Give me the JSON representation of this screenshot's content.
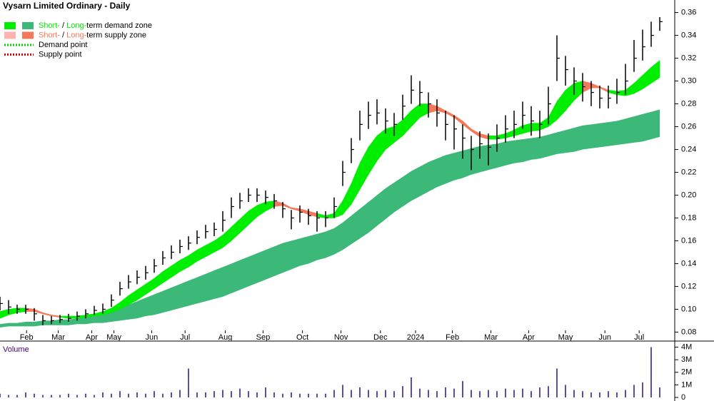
{
  "chart_data": {
    "type": "ohlc",
    "title": "Vysarn Limited Ordinary - Daily",
    "legend": [
      {
        "short": "Short-",
        "sep": " / ",
        "long": "Long-",
        "label": "term demand zone",
        "colors": [
          "#00ee00",
          "#3cb878"
        ]
      },
      {
        "short": "Short-",
        "sep": " / ",
        "long": "Long-",
        "label": "term supply zone",
        "colors": [
          "#ffb3ae",
          "#f4785a"
        ]
      },
      {
        "label": "Demand point",
        "color": "#00cc00"
      },
      {
        "label": "Supply point",
        "color": "#dd0000"
      }
    ],
    "x": [
      0,
      1,
      2,
      3,
      4,
      5,
      6,
      7,
      8,
      9,
      10,
      11,
      12,
      13,
      14,
      15,
      16,
      17,
      18,
      19,
      20,
      21,
      22,
      23,
      24,
      25,
      26,
      27,
      28,
      29,
      30,
      31,
      32,
      33,
      34,
      35,
      36,
      37,
      38,
      39,
      40,
      41,
      42,
      43,
      44,
      45,
      46,
      47,
      48,
      49,
      50,
      51,
      52,
      53,
      54,
      55,
      56,
      57,
      58,
      59,
      60,
      61,
      62,
      63,
      64,
      65,
      66,
      67,
      68,
      69,
      70,
      71,
      72,
      73,
      74,
      75,
      76,
      77
    ],
    "xlim": [
      0,
      78.75
    ],
    "xticks": [
      {
        "value": 3.1,
        "label": "Feb"
      },
      {
        "value": 6.8,
        "label": "Mar"
      },
      {
        "value": 10.7,
        "label": "Apr"
      },
      {
        "value": 13.3,
        "label": "May"
      },
      {
        "value": 17.7,
        "label": "Jun"
      },
      {
        "value": 21.6,
        "label": "Jul"
      },
      {
        "value": 26.3,
        "label": "Aug"
      },
      {
        "value": 30.7,
        "label": "Sep"
      },
      {
        "value": 35.3,
        "label": "Oct"
      },
      {
        "value": 39.8,
        "label": "Nov"
      },
      {
        "value": 44.4,
        "label": "Dec"
      },
      {
        "value": 48.5,
        "label": "2024"
      },
      {
        "value": 52.8,
        "label": "Feb"
      },
      {
        "value": 57.3,
        "label": "Mar"
      },
      {
        "value": 61.7,
        "label": "Apr"
      },
      {
        "value": 66,
        "label": "May"
      },
      {
        "value": 70.6,
        "label": "Jun"
      },
      {
        "value": 74.6,
        "label": "Jul"
      }
    ],
    "ylim": [
      0.074,
      0.371
    ],
    "yticks": [
      0.08,
      {
        "value": 0.1,
        "label": "0.10"
      },
      0.12,
      0.14,
      0.16,
      0.18,
      {
        "value": 0.2,
        "label": "0.20"
      },
      0.22,
      0.24,
      0.26,
      0.28,
      {
        "value": 0.3,
        "label": "0.30"
      },
      0.32,
      0.34,
      0.36
    ],
    "high": [
      0.111,
      0.108,
      0.104,
      0.104,
      0.101,
      0.095,
      0.094,
      0.095,
      0.096,
      0.098,
      0.1,
      0.103,
      0.105,
      0.113,
      0.124,
      0.13,
      0.134,
      0.138,
      0.144,
      0.151,
      0.156,
      0.161,
      0.164,
      0.169,
      0.174,
      0.176,
      0.186,
      0.198,
      0.202,
      0.206,
      0.206,
      0.204,
      0.201,
      0.194,
      0.187,
      0.191,
      0.188,
      0.186,
      0.186,
      0.198,
      0.23,
      0.25,
      0.274,
      0.282,
      0.284,
      0.276,
      0.272,
      0.288,
      0.305,
      0.3,
      0.29,
      0.284,
      0.274,
      0.27,
      0.262,
      0.252,
      0.256,
      0.254,
      0.262,
      0.27,
      0.274,
      0.282,
      0.278,
      0.274,
      0.295,
      0.34,
      0.322,
      0.312,
      0.307,
      0.3,
      0.296,
      0.296,
      0.302,
      0.315,
      0.336,
      0.345,
      0.352,
      0.356
    ],
    "low": [
      0.099,
      0.096,
      0.096,
      0.096,
      0.09,
      0.086,
      0.087,
      0.088,
      0.089,
      0.09,
      0.092,
      0.095,
      0.096,
      0.102,
      0.112,
      0.118,
      0.122,
      0.126,
      0.132,
      0.139,
      0.144,
      0.149,
      0.152,
      0.157,
      0.162,
      0.164,
      0.168,
      0.18,
      0.188,
      0.194,
      0.194,
      0.192,
      0.188,
      0.18,
      0.17,
      0.176,
      0.174,
      0.168,
      0.172,
      0.18,
      0.208,
      0.228,
      0.248,
      0.258,
      0.262,
      0.254,
      0.252,
      0.266,
      0.28,
      0.278,
      0.268,
      0.26,
      0.248,
      0.24,
      0.232,
      0.222,
      0.232,
      0.226,
      0.238,
      0.246,
      0.25,
      0.258,
      0.252,
      0.25,
      0.262,
      0.3,
      0.296,
      0.288,
      0.282,
      0.278,
      0.276,
      0.276,
      0.28,
      0.288,
      0.308,
      0.318,
      0.33,
      0.344
    ],
    "close": [
      0.105,
      0.102,
      0.1,
      0.1,
      0.096,
      0.09,
      0.09,
      0.091,
      0.092,
      0.094,
      0.096,
      0.099,
      0.1,
      0.108,
      0.118,
      0.124,
      0.128,
      0.132,
      0.138,
      0.145,
      0.15,
      0.155,
      0.158,
      0.163,
      0.168,
      0.17,
      0.178,
      0.19,
      0.195,
      0.2,
      0.2,
      0.198,
      0.195,
      0.188,
      0.18,
      0.185,
      0.182,
      0.18,
      0.18,
      0.19,
      0.22,
      0.24,
      0.262,
      0.27,
      0.272,
      0.265,
      0.262,
      0.278,
      0.292,
      0.29,
      0.28,
      0.272,
      0.262,
      0.258,
      0.25,
      0.24,
      0.245,
      0.242,
      0.25,
      0.258,
      0.262,
      0.27,
      0.265,
      0.262,
      0.28,
      0.32,
      0.31,
      0.3,
      0.295,
      0.29,
      0.285,
      0.285,
      0.29,
      0.3,
      0.32,
      0.33,
      0.34,
      0.352
    ],
    "short_zone": {
      "upper": [
        0.098,
        0.1,
        0.101,
        0.101,
        0.1,
        0.097,
        0.095,
        0.094,
        0.094,
        0.094,
        0.095,
        0.096,
        0.098,
        0.101,
        0.106,
        0.112,
        0.117,
        0.122,
        0.127,
        0.133,
        0.138,
        0.143,
        0.147,
        0.152,
        0.156,
        0.16,
        0.165,
        0.172,
        0.179,
        0.186,
        0.191,
        0.194,
        0.195,
        0.193,
        0.189,
        0.188,
        0.186,
        0.184,
        0.182,
        0.184,
        0.195,
        0.21,
        0.228,
        0.242,
        0.252,
        0.258,
        0.26,
        0.266,
        0.274,
        0.28,
        0.28,
        0.278,
        0.274,
        0.27,
        0.265,
        0.258,
        0.254,
        0.252,
        0.252,
        0.254,
        0.257,
        0.261,
        0.263,
        0.263,
        0.268,
        0.282,
        0.292,
        0.298,
        0.3,
        0.298,
        0.295,
        0.292,
        0.291,
        0.292,
        0.298,
        0.305,
        0.312,
        0.318
      ],
      "lower": [
        0.092,
        0.095,
        0.097,
        0.098,
        0.098,
        0.096,
        0.094,
        0.093,
        0.092,
        0.092,
        0.093,
        0.094,
        0.095,
        0.097,
        0.1,
        0.104,
        0.108,
        0.113,
        0.118,
        0.123,
        0.128,
        0.133,
        0.137,
        0.142,
        0.146,
        0.15,
        0.154,
        0.16,
        0.167,
        0.174,
        0.181,
        0.186,
        0.19,
        0.191,
        0.188,
        0.186,
        0.183,
        0.181,
        0.18,
        0.18,
        0.183,
        0.192,
        0.205,
        0.218,
        0.23,
        0.24,
        0.246,
        0.252,
        0.26,
        0.268,
        0.272,
        0.274,
        0.272,
        0.268,
        0.262,
        0.256,
        0.251,
        0.249,
        0.249,
        0.25,
        0.252,
        0.254,
        0.256,
        0.257,
        0.26,
        0.266,
        0.274,
        0.283,
        0.29,
        0.294,
        0.294,
        0.29,
        0.288,
        0.287,
        0.289,
        0.293,
        0.298,
        0.303
      ]
    },
    "long_zone": {
      "upper": [
        0.087,
        0.088,
        0.088,
        0.089,
        0.089,
        0.09,
        0.09,
        0.091,
        0.091,
        0.092,
        0.093,
        0.094,
        0.095,
        0.099,
        0.101,
        0.104,
        0.107,
        0.11,
        0.113,
        0.116,
        0.119,
        0.122,
        0.125,
        0.128,
        0.131,
        0.134,
        0.137,
        0.14,
        0.143,
        0.146,
        0.149,
        0.152,
        0.155,
        0.158,
        0.16,
        0.162,
        0.164,
        0.166,
        0.168,
        0.171,
        0.176,
        0.182,
        0.188,
        0.194,
        0.2,
        0.206,
        0.211,
        0.216,
        0.221,
        0.225,
        0.229,
        0.232,
        0.235,
        0.237,
        0.239,
        0.241,
        0.243,
        0.244,
        0.245,
        0.247,
        0.248,
        0.249,
        0.25,
        0.251,
        0.253,
        0.255,
        0.257,
        0.259,
        0.261,
        0.262,
        0.263,
        0.264,
        0.265,
        0.267,
        0.269,
        0.271,
        0.273,
        0.275
      ],
      "lower": [
        0.084,
        0.085,
        0.085,
        0.085,
        0.085,
        0.086,
        0.086,
        0.086,
        0.086,
        0.087,
        0.087,
        0.088,
        0.088,
        0.089,
        0.09,
        0.091,
        0.092,
        0.094,
        0.095,
        0.097,
        0.099,
        0.101,
        0.103,
        0.105,
        0.107,
        0.109,
        0.111,
        0.114,
        0.117,
        0.12,
        0.123,
        0.126,
        0.129,
        0.132,
        0.135,
        0.138,
        0.14,
        0.143,
        0.145,
        0.148,
        0.152,
        0.157,
        0.162,
        0.167,
        0.173,
        0.179,
        0.185,
        0.19,
        0.195,
        0.199,
        0.203,
        0.207,
        0.21,
        0.213,
        0.215,
        0.218,
        0.22,
        0.222,
        0.224,
        0.226,
        0.228,
        0.229,
        0.231,
        0.232,
        0.234,
        0.236,
        0.237,
        0.238,
        0.24,
        0.241,
        0.242,
        0.243,
        0.244,
        0.245,
        0.246,
        0.247,
        0.249,
        0.251
      ]
    },
    "bar_color": "#000000",
    "volume": {
      "title": "Volume",
      "color": "#5a4fa8",
      "values": [
        300000,
        200000,
        200000,
        400000,
        300000,
        200000,
        200000,
        200000,
        300000,
        200000,
        300000,
        200000,
        400000,
        300000,
        500000,
        300000,
        400000,
        300000,
        500000,
        300000,
        400000,
        600000,
        2300000,
        400000,
        400000,
        500000,
        600000,
        500000,
        700000,
        500000,
        400000,
        800000,
        400000,
        300000,
        400000,
        300000,
        300000,
        300000,
        300000,
        600000,
        1000000,
        600000,
        800000,
        600000,
        500000,
        600000,
        500000,
        900000,
        1600000,
        700000,
        600000,
        500000,
        800000,
        700000,
        1300000,
        600000,
        500000,
        600000,
        500000,
        700000,
        600000,
        700000,
        500000,
        800000,
        900000,
        2300000,
        1000000,
        600000,
        500000,
        400000,
        400000,
        500000,
        400000,
        600000,
        1000000,
        1200000,
        4000000,
        800000
      ],
      "ylim": [
        0,
        4200000
      ],
      "yticks": [
        0,
        {
          "value": 1000000,
          "label": "1M"
        },
        {
          "value": 2000000,
          "label": "2M"
        },
        {
          "value": 3000000,
          "label": "3M"
        },
        {
          "value": 4000000,
          "label": "4M"
        }
      ]
    }
  }
}
